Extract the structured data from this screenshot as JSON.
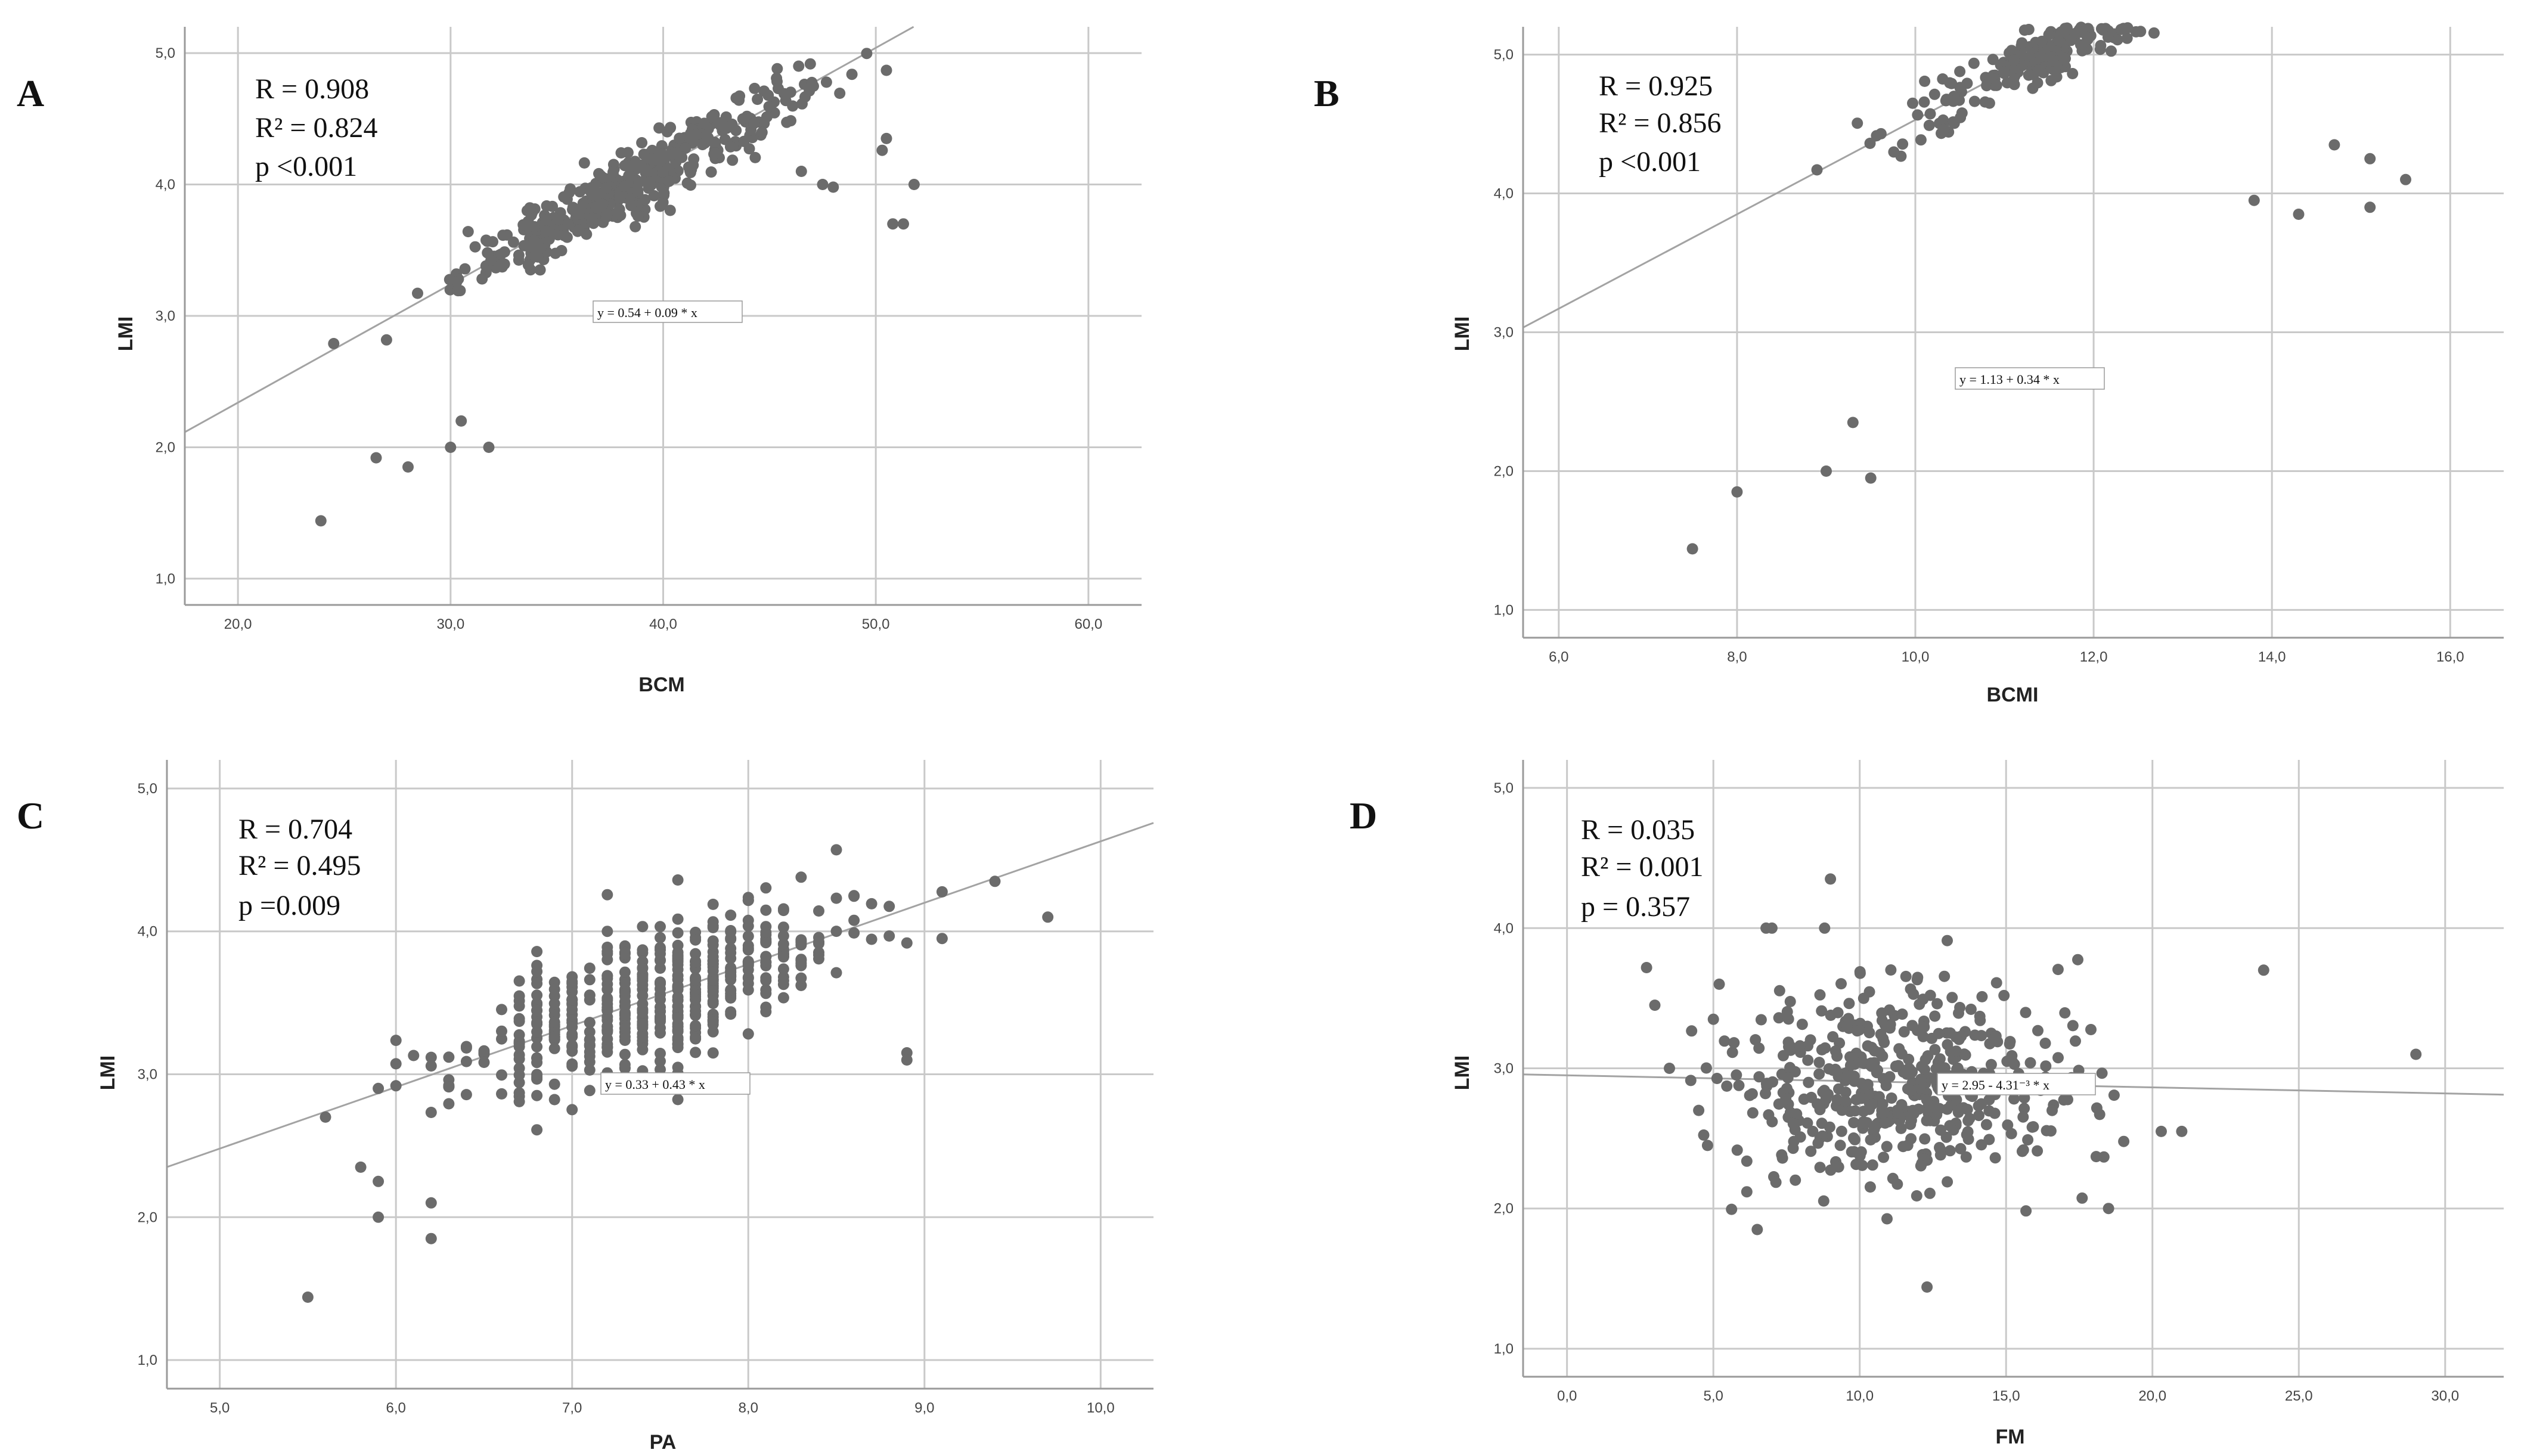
{
  "chart_data": [
    {
      "type": "scatter",
      "panel": "A",
      "xlabel": "BCM",
      "ylabel": "LMI",
      "xlim": [
        17.5,
        62.5
      ],
      "ylim": [
        0.8,
        5.2
      ],
      "xticks": [
        "20,0",
        "30,0",
        "40,0",
        "50,0",
        "60,0"
      ],
      "yticks": [
        "1,0",
        "2,0",
        "3,0",
        "4,0",
        "5,0"
      ],
      "stats": [
        "R = 0.908",
        "R² = 0.824",
        "p <0.001"
      ],
      "equation": "y = 0.54 + 0.09 * x",
      "fit": {
        "intercept": 0.54,
        "slope": 0.09
      },
      "cloud": {
        "x_mean": 38.5,
        "x_sd": 4.0,
        "resid_sd": 0.12,
        "n": 430
      },
      "points": [
        [
          23.9,
          1.44
        ],
        [
          26.5,
          1.92
        ],
        [
          28.0,
          1.85
        ],
        [
          30.0,
          2.0
        ],
        [
          30.5,
          2.2
        ],
        [
          31.8,
          2.0
        ],
        [
          50.3,
          4.26
        ],
        [
          50.5,
          4.35
        ],
        [
          50.8,
          3.7
        ],
        [
          51.3,
          3.7
        ],
        [
          51.8,
          4.0
        ],
        [
          46.5,
          4.1
        ],
        [
          48.0,
          3.98
        ],
        [
          47.5,
          4.0
        ]
      ]
    },
    {
      "type": "scatter",
      "panel": "B",
      "xlabel": "BCMI",
      "ylabel": "LMI",
      "xlim": [
        5.6,
        16.6
      ],
      "ylim": [
        0.8,
        5.2
      ],
      "xticks": [
        "6,0",
        "8,0",
        "10,0",
        "12,0",
        "14,0",
        "16,0"
      ],
      "yticks": [
        "1,0",
        "2,0",
        "3,0",
        "4,0",
        "5,0"
      ],
      "stats": [
        "R = 0.925",
        "R² = 0.856",
        "p <0.001"
      ],
      "equation": "y = 1.13 + 0.34 * x",
      "fit": {
        "intercept": 1.13,
        "slope": 0.34
      },
      "cloud": {
        "x_mean": 12.0,
        "x_sd": 1.0,
        "resid_sd": 0.11,
        "n": 430
      },
      "points": [
        [
          7.5,
          1.44
        ],
        [
          8.0,
          1.85
        ],
        [
          9.0,
          2.0
        ],
        [
          9.3,
          2.35
        ],
        [
          9.5,
          1.95
        ],
        [
          14.7,
          4.35
        ],
        [
          15.1,
          4.25
        ],
        [
          15.5,
          4.1
        ],
        [
          15.1,
          3.9
        ],
        [
          14.3,
          3.85
        ],
        [
          13.8,
          3.95
        ]
      ]
    },
    {
      "type": "scatter",
      "panel": "C",
      "xlabel": "PA",
      "ylabel": "LMI",
      "xlim": [
        4.7,
        10.3
      ],
      "ylim": [
        0.8,
        5.2
      ],
      "xticks": [
        "5,0",
        "6,0",
        "7,0",
        "8,0",
        "9,0",
        "10,0"
      ],
      "yticks": [
        "1,0",
        "2,0",
        "3,0",
        "4,0",
        "5,0"
      ],
      "stats": [
        "R = 0.704",
        "R² = 0.495",
        "p =0.009"
      ],
      "equation": "y = 0.33 + 0.43 * x",
      "fit": {
        "intercept": 0.33,
        "slope": 0.43
      },
      "cloud": {
        "x_mean": 7.5,
        "x_sd": 0.55,
        "resid_sd": 0.24,
        "n": 480,
        "x_step": 0.1
      },
      "points": [
        [
          5.5,
          1.44
        ],
        [
          5.6,
          2.7
        ],
        [
          5.8,
          2.35
        ],
        [
          5.9,
          2.25
        ],
        [
          5.9,
          2.0
        ],
        [
          6.2,
          2.1
        ],
        [
          6.2,
          1.85
        ],
        [
          7.2,
          4.0
        ],
        [
          8.6,
          4.25
        ],
        [
          9.4,
          4.35
        ],
        [
          9.7,
          4.1
        ],
        [
          9.1,
          3.95
        ],
        [
          8.9,
          3.15
        ],
        [
          8.9,
          3.1
        ]
      ]
    },
    {
      "type": "scatter",
      "panel": "D",
      "xlabel": "FM",
      "ylabel": "LMI",
      "xlim": [
        -1.5,
        32.0
      ],
      "ylim": [
        0.8,
        5.2
      ],
      "xticks": [
        "0,0",
        "5,0",
        "10,0",
        "15,0",
        "20,0",
        "25,0",
        "30,0"
      ],
      "yticks": [
        "1,0",
        "2,0",
        "3,0",
        "4,0",
        "5,0"
      ],
      "stats": [
        "R = 0.035",
        "R² = 0.001",
        "p = 0.357"
      ],
      "equation": "y = 2.95 - 4.31⁻³ * x",
      "fit": {
        "intercept": 2.95,
        "slope": -0.00431
      },
      "cloud": {
        "x_mean": 11.3,
        "x_sd": 3.0,
        "y_mean": 2.9,
        "y_sd": 0.38,
        "n": 480
      },
      "points": [
        [
          3.0,
          3.45
        ],
        [
          3.5,
          3.0
        ],
        [
          4.5,
          2.7
        ],
        [
          4.8,
          2.45
        ],
        [
          5.0,
          3.35
        ],
        [
          5.2,
          3.6
        ],
        [
          6.5,
          1.85
        ],
        [
          6.8,
          4.0
        ],
        [
          7.0,
          4.0
        ],
        [
          9.0,
          4.35
        ],
        [
          8.8,
          4.0
        ],
        [
          12.3,
          1.44
        ],
        [
          20.3,
          2.55
        ],
        [
          21.0,
          2.55
        ],
        [
          23.8,
          3.7
        ],
        [
          29.0,
          3.1
        ],
        [
          18.5,
          2.0
        ]
      ]
    }
  ]
}
